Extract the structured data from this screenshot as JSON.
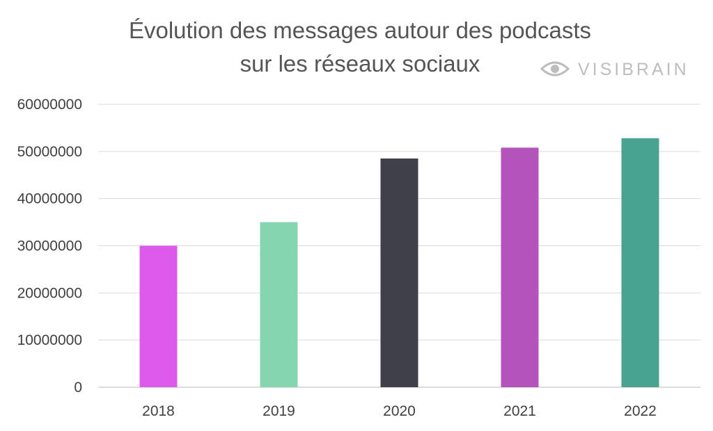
{
  "chart_data": {
    "type": "bar",
    "title": [
      "Évolution des messages autour des podcasts",
      "sur les réseaux sociaux"
    ],
    "categories": [
      "2018",
      "2019",
      "2020",
      "2021",
      "2022"
    ],
    "values": [
      30000000,
      35000000,
      48500000,
      50800000,
      52800000
    ],
    "colors": [
      "#dd5aec",
      "#84d6b0",
      "#40404a",
      "#b553bd",
      "#48a391"
    ],
    "ylim": [
      0,
      60000000
    ],
    "yticks": [
      0,
      10000000,
      20000000,
      30000000,
      40000000,
      50000000,
      60000000
    ],
    "ytick_labels": [
      "0",
      "10000000",
      "20000000",
      "30000000",
      "40000000",
      "50000000",
      "60000000"
    ],
    "xlabel": "",
    "ylabel": "",
    "grid": true,
    "legend": false
  },
  "branding": {
    "text": "VISIBRAIN",
    "icon": "eye-icon",
    "color": "#bdbdbd"
  }
}
